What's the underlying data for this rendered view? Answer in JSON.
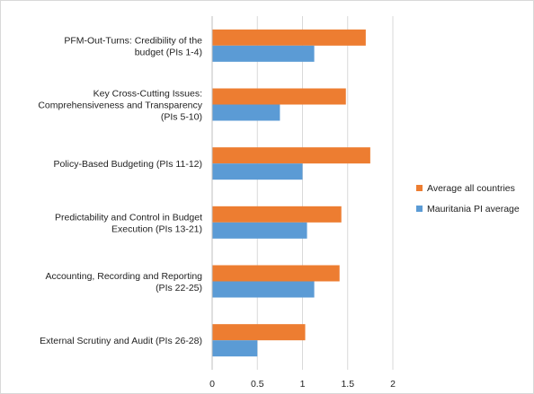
{
  "chart_data": {
    "type": "bar",
    "orientation": "horizontal",
    "categories": [
      [
        "PFM-Out-Turns: Credibility of the",
        "budget (PIs 1-4)"
      ],
      [
        "Key Cross-Cutting Issues:",
        "Comprehensiveness and Transparency",
        "(PIs 5-10)"
      ],
      [
        "Policy-Based Budgeting (PIs 11-12)"
      ],
      [
        "Predictability and Control in Budget",
        "Execution (PIs 13-21)"
      ],
      [
        "Accounting, Recording and Reporting",
        "(PIs 22-25)"
      ],
      [
        "External Scrutiny and Audit (PIs 26-28)"
      ]
    ],
    "series": [
      {
        "name": "Average all countries",
        "color": "#ED7D31",
        "values": [
          1.7,
          1.48,
          1.75,
          1.43,
          1.41,
          1.03
        ]
      },
      {
        "name": "Mauritania PI average",
        "color": "#5B9BD5",
        "values": [
          1.13,
          0.75,
          1.0,
          1.05,
          1.13,
          0.5
        ]
      }
    ],
    "xlim": [
      0,
      2
    ],
    "xticks": [
      "0",
      "0.5",
      "1",
      "1.5",
      "2"
    ],
    "grid": true,
    "legend_position": "right",
    "title": "",
    "xlabel": "",
    "ylabel": ""
  }
}
